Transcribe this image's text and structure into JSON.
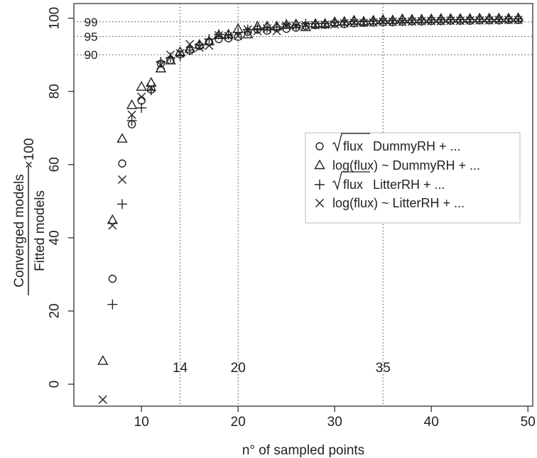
{
  "chart_data": {
    "type": "scatter",
    "title": "",
    "xlabel": "n° of sampled points",
    "ylabel": {
      "numerator": "Converged models",
      "denominator": "Fitted models",
      "multiplier": "×100"
    },
    "xlim": [
      3,
      50.5
    ],
    "ylim": [
      -6,
      104
    ],
    "xticks": [
      "10",
      "20",
      "30",
      "40",
      "50"
    ],
    "yticks": [
      "0",
      "20",
      "40",
      "60",
      "80",
      "100"
    ],
    "reference_lines": {
      "horizontal": [
        {
          "value": 99,
          "label": "99"
        },
        {
          "value": 95,
          "label": "95"
        },
        {
          "value": 90,
          "label": "90"
        }
      ],
      "vertical": [
        {
          "value": 14,
          "label": "14"
        },
        {
          "value": 20,
          "label": "20"
        },
        {
          "value": 35,
          "label": "35"
        }
      ]
    },
    "legend_position": "right",
    "series": [
      {
        "name": "√flux DummyRH + ...",
        "legend": {
          "prefix": "",
          "radicand": "flux",
          "text": " DummyRH + ..."
        },
        "marker": "circle",
        "x": [
          7,
          8,
          9,
          10,
          11,
          12,
          13,
          14,
          15,
          16,
          17,
          18,
          19,
          20,
          21,
          22,
          23,
          24,
          25,
          26,
          27,
          28,
          29,
          30,
          31,
          32,
          33,
          34,
          35,
          36,
          37,
          38,
          39,
          40,
          41,
          42,
          43,
          44,
          45,
          46,
          47,
          48,
          49
        ],
        "y": [
          28.8,
          60.3,
          71.0,
          77.5,
          80.5,
          87.6,
          88.5,
          90.1,
          91.1,
          92.4,
          93.5,
          94.3,
          94.5,
          94.9,
          96.3,
          96.9,
          96.6,
          97.3,
          97.1,
          97.4,
          97.9,
          98.1,
          98.2,
          98.5,
          98.4,
          98.6,
          98.7,
          98.8,
          98.9,
          98.9,
          99.0,
          99.1,
          99.1,
          99.2,
          99.2,
          99.3,
          99.3,
          99.3,
          99.4,
          99.4,
          99.4,
          99.5,
          99.5
        ]
      },
      {
        "name": "log(flux) ~ DummyRH + ...",
        "legend": {
          "prefix": "log(flux) ~ DummyRH + ...",
          "radicand": "",
          "text": ""
        },
        "marker": "triangle",
        "x": [
          6,
          7,
          8,
          9,
          10,
          11,
          12,
          13,
          14,
          15,
          16,
          17,
          18,
          19,
          20,
          21,
          22,
          23,
          24,
          25,
          26,
          27,
          28,
          29,
          30,
          31,
          32,
          33,
          34,
          35,
          36,
          37,
          38,
          39,
          40,
          41,
          42,
          43,
          44,
          45,
          46,
          47,
          48,
          49
        ],
        "y": [
          6.3,
          44.8,
          67.0,
          76.2,
          81.2,
          82.3,
          86.2,
          88.4,
          90.7,
          91.6,
          92.7,
          93.6,
          95.3,
          95.5,
          97.0,
          95.5,
          97.7,
          97.7,
          97.7,
          98.1,
          98.3,
          97.5,
          98.4,
          98.4,
          98.9,
          99.0,
          99.3,
          99.0,
          99.3,
          99.5,
          99.4,
          99.7,
          99.6,
          99.6,
          99.7,
          99.8,
          99.8,
          99.8,
          99.8,
          99.9,
          99.9,
          99.9,
          99.9,
          100.0
        ]
      },
      {
        "name": "√flux LitterRH + ...",
        "legend": {
          "prefix": "",
          "radicand": "flux",
          "text": " LitterRH + ..."
        },
        "marker": "plus",
        "x": [
          7,
          8,
          9,
          10,
          11,
          12,
          13,
          14,
          15,
          16,
          17,
          18,
          19,
          20,
          21,
          22,
          23,
          24,
          25,
          26,
          27,
          28,
          29,
          30,
          31,
          32,
          33,
          34,
          35,
          36,
          37,
          38,
          39,
          40,
          41,
          42,
          43,
          44,
          45,
          46,
          47,
          48,
          49
        ],
        "y": [
          21.8,
          49.2,
          72.0,
          75.5,
          80.3,
          88.1,
          89.2,
          89.7,
          91.3,
          92.7,
          94.3,
          95.6,
          95.5,
          96.1,
          96.9,
          97.1,
          97.4,
          97.6,
          98.4,
          98.0,
          98.5,
          98.5,
          98.6,
          98.9,
          99.0,
          99.1,
          99.2,
          99.3,
          99.3,
          99.4,
          99.4,
          99.5,
          99.5,
          99.5,
          99.6,
          99.6,
          99.6,
          99.7,
          99.7,
          99.7,
          99.7,
          99.8,
          99.8
        ]
      },
      {
        "name": "log(flux) ~ LitterRH + ...",
        "legend": {
          "prefix": "log(flux) ~ LitterRH + ...",
          "radicand": "",
          "text": ""
        },
        "marker": "cross",
        "x": [
          6,
          7,
          8,
          9,
          10,
          11,
          12,
          13,
          14,
          15,
          16,
          17,
          18,
          19,
          20,
          21,
          22,
          23,
          24,
          25,
          26,
          27,
          28,
          29,
          30,
          31,
          32,
          33,
          34,
          35,
          36,
          37,
          38,
          39,
          40,
          41,
          42,
          43,
          44,
          45,
          46,
          47,
          48,
          49
        ],
        "y": [
          -4.2,
          43.4,
          55.9,
          73.6,
          78.5,
          81.0,
          87.2,
          90.0,
          90.4,
          92.9,
          92.0,
          92.5,
          95.3,
          95.1,
          95.2,
          96.9,
          96.5,
          97.2,
          96.5,
          97.9,
          97.9,
          98.1,
          98.1,
          98.2,
          98.3,
          98.6,
          98.7,
          98.7,
          98.8,
          99.0,
          99.0,
          99.0,
          99.1,
          99.2,
          99.2,
          99.2,
          99.3,
          99.3,
          99.4,
          99.4,
          99.4,
          99.5,
          99.5,
          99.5
        ]
      }
    ]
  }
}
